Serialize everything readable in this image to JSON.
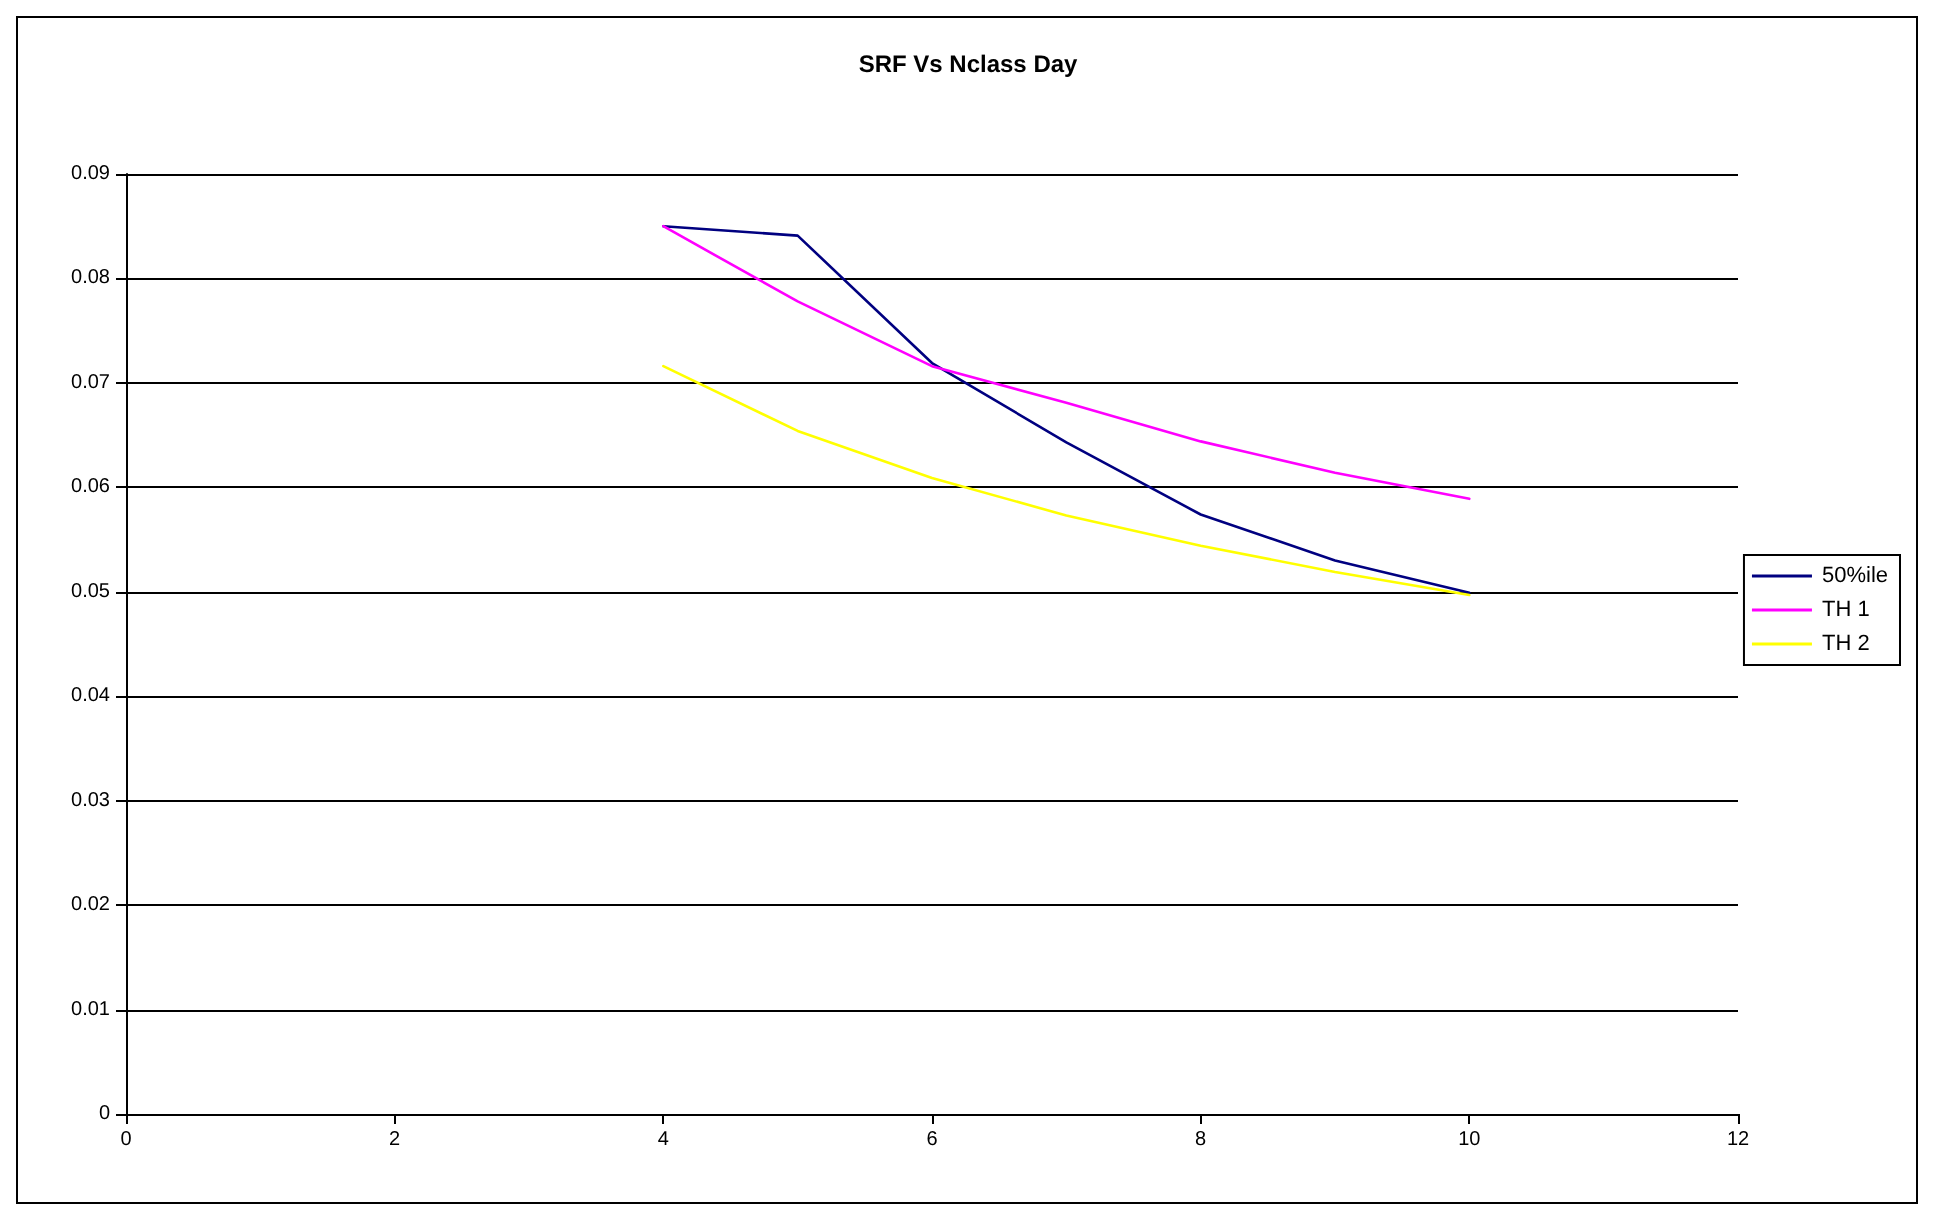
{
  "chart_data": {
    "type": "line",
    "title": "SRF Vs Nclass Day",
    "x": [
      4,
      5,
      6,
      7,
      8,
      9,
      10
    ],
    "series": [
      {
        "name": "50%ile",
        "color": "#000080",
        "values": [
          0.085,
          0.0841,
          0.0719,
          0.0643,
          0.0574,
          0.053,
          0.0499
        ]
      },
      {
        "name": "TH 1",
        "color": "#ff00ff",
        "values": [
          0.085,
          0.0778,
          0.0716,
          0.0681,
          0.0644,
          0.0614,
          0.0589
        ]
      },
      {
        "name": "TH 2",
        "color": "#ffff00",
        "values": [
          0.0716,
          0.0654,
          0.0609,
          0.0573,
          0.0544,
          0.0519,
          0.0497
        ]
      }
    ],
    "xlim": [
      0,
      12
    ],
    "xticks": [
      0,
      2,
      4,
      6,
      8,
      10,
      12
    ],
    "ylim": [
      0,
      0.09
    ],
    "yticks": [
      0,
      0.01,
      0.02,
      0.03,
      0.04,
      0.05,
      0.06,
      0.07,
      0.08,
      0.09
    ],
    "grid": "y",
    "legend": "right",
    "marker": "none",
    "line_style": "solid"
  }
}
